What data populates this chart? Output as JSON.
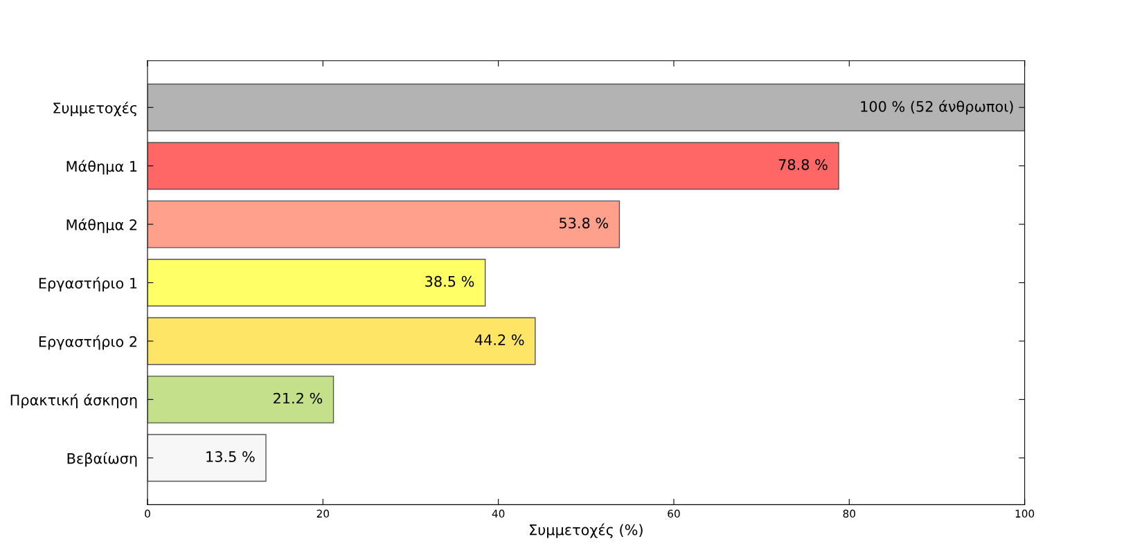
{
  "chart_data": {
    "type": "bar",
    "orientation": "horizontal",
    "xlabel": "Συμμετοχές (%)",
    "categories": [
      "Συμμετοχές",
      "Μάθημα 1",
      "Μάθημα 2",
      "Εργαστήριο 1",
      "Εργαστήριο 2",
      "Πρακτική άσκηση",
      "Βεβαίωση"
    ],
    "values": [
      100,
      78.8,
      53.8,
      38.5,
      44.2,
      21.2,
      13.5
    ],
    "colors": [
      "#b3b3b3",
      "#ff6666",
      "#ffa08c",
      "#ffff66",
      "#ffe566",
      "#c5e08a",
      "#f7f7f7"
    ],
    "value_labels": [
      "100 % (52 άνθρωποι)",
      "78.8 %",
      "53.8 %",
      "38.5 %",
      "44.2 %",
      "21.2 %",
      "13.5 %"
    ],
    "xlim": [
      0,
      100
    ],
    "xticks": [
      0,
      20,
      40,
      60,
      80,
      100
    ],
    "grid": false,
    "legend": false
  }
}
